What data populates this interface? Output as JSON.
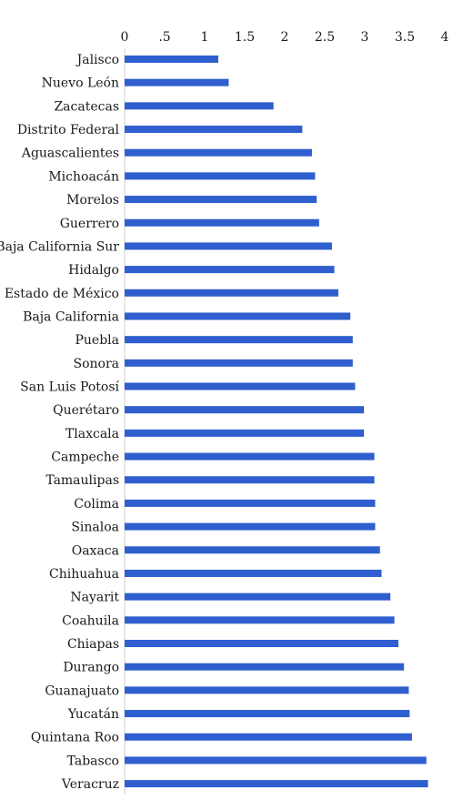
{
  "chart_data": {
    "type": "bar",
    "orientation": "horizontal",
    "title": "",
    "xlabel": "",
    "ylabel": "",
    "xlim": [
      0,
      4
    ],
    "ticks": [
      {
        "value": 0,
        "label": "0"
      },
      {
        "value": 0.5,
        "label": ".5"
      },
      {
        "value": 1,
        "label": "1"
      },
      {
        "value": 1.5,
        "label": "1.5"
      },
      {
        "value": 2,
        "label": "2"
      },
      {
        "value": 2.5,
        "label": "2.5"
      },
      {
        "value": 3,
        "label": "3"
      },
      {
        "value": 3.5,
        "label": "3.5"
      },
      {
        "value": 4,
        "label": "4"
      }
    ],
    "axis_position": "top",
    "grid": false,
    "bar_color": "#2f5fcf",
    "categories": [
      "Jalisco",
      "Nuevo León",
      "Zacatecas",
      "Distrito Federal",
      "Aguascalientes",
      "Michoacán",
      "Morelos",
      "Guerrero",
      "Baja California Sur",
      "Hidalgo",
      "Estado de México",
      "Baja California",
      "Puebla",
      "Sonora",
      "San Luis Potosí",
      "Querétaro",
      "Tlaxcala",
      "Campeche",
      "Tamaulipas",
      "Colima",
      "Sinaloa",
      "Oaxaca",
      "Chihuahua",
      "Nayarit",
      "Coahuila",
      "Chiapas",
      "Durango",
      "Guanajuato",
      "Yucatán",
      "Quintana Roo",
      "Tabasco",
      "Veracruz"
    ],
    "values": [
      1.17,
      1.3,
      1.86,
      2.22,
      2.34,
      2.38,
      2.4,
      2.43,
      2.59,
      2.62,
      2.67,
      2.82,
      2.85,
      2.85,
      2.88,
      2.99,
      2.99,
      3.12,
      3.12,
      3.13,
      3.13,
      3.19,
      3.21,
      3.32,
      3.37,
      3.42,
      3.49,
      3.55,
      3.56,
      3.59,
      3.77,
      3.79
    ]
  }
}
